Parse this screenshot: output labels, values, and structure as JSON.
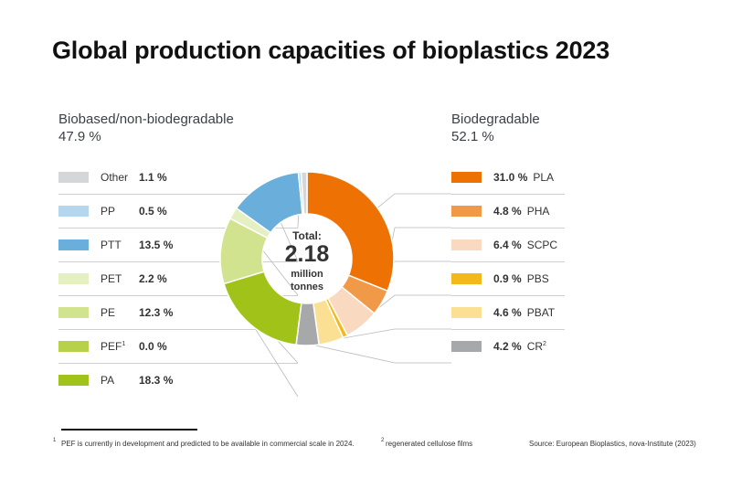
{
  "chart_data": {
    "type": "donut",
    "title": "Global production capacities of bioplastics 2023",
    "center": {
      "label": "Total:",
      "value": "2.18",
      "unit_line1": "million",
      "unit_line2": "tonnes"
    },
    "groups": [
      {
        "name": "Biobased/non-biodegradable",
        "total_label": "47.9 %",
        "items": [
          {
            "name": "Other",
            "sup": "",
            "value": 1.1,
            "label": "1.1 %",
            "color": "#d4d6d7"
          },
          {
            "name": "PP",
            "sup": "",
            "value": 0.5,
            "label": "0.5 %",
            "color": "#b5d6ef"
          },
          {
            "name": "PTT",
            "sup": "",
            "value": 13.5,
            "label": "13.5 %",
            "color": "#6aaedb"
          },
          {
            "name": "PET",
            "sup": "",
            "value": 2.2,
            "label": "2.2 %",
            "color": "#e4efc2"
          },
          {
            "name": "PE",
            "sup": "",
            "value": 12.3,
            "label": "12.3 %",
            "color": "#d1e38f"
          },
          {
            "name": "PEF",
            "sup": "1",
            "value": 0.0,
            "label": "0.0 %",
            "color": "#b7d24a"
          },
          {
            "name": "PA",
            "sup": "",
            "value": 18.3,
            "label": "18.3 %",
            "color": "#a1c219"
          }
        ]
      },
      {
        "name": "Biodegradable",
        "total_label": "52.1 %",
        "items": [
          {
            "name": "PLA",
            "sup": "",
            "value": 31.0,
            "label": "31.0 %",
            "color": "#ee7203"
          },
          {
            "name": "PHA",
            "sup": "",
            "value": 4.8,
            "label": "4.8 %",
            "color": "#f09a48"
          },
          {
            "name": "SCPC",
            "sup": "",
            "value": 6.4,
            "label": "6.4 %",
            "color": "#f9d9bf"
          },
          {
            "name": "PBS",
            "sup": "",
            "value": 0.9,
            "label": "0.9 %",
            "color": "#f5b81a"
          },
          {
            "name": "PBAT",
            "sup": "",
            "value": 4.6,
            "label": "4.6 %",
            "color": "#fbdf92"
          },
          {
            "name": "CR",
            "sup": "2",
            "value": 4.2,
            "label": "4.2 %",
            "color": "#a6a8aa"
          }
        ]
      }
    ]
  },
  "footnotes": {
    "fn1_mark": "1",
    "fn1": "PEF is currently in development and predicted to be available in commercial scale in 2024.",
    "fn2_mark": "2",
    "fn2": "regenerated cellulose films",
    "source": "Source: European Bioplastics, nova-Institute (2023)"
  }
}
